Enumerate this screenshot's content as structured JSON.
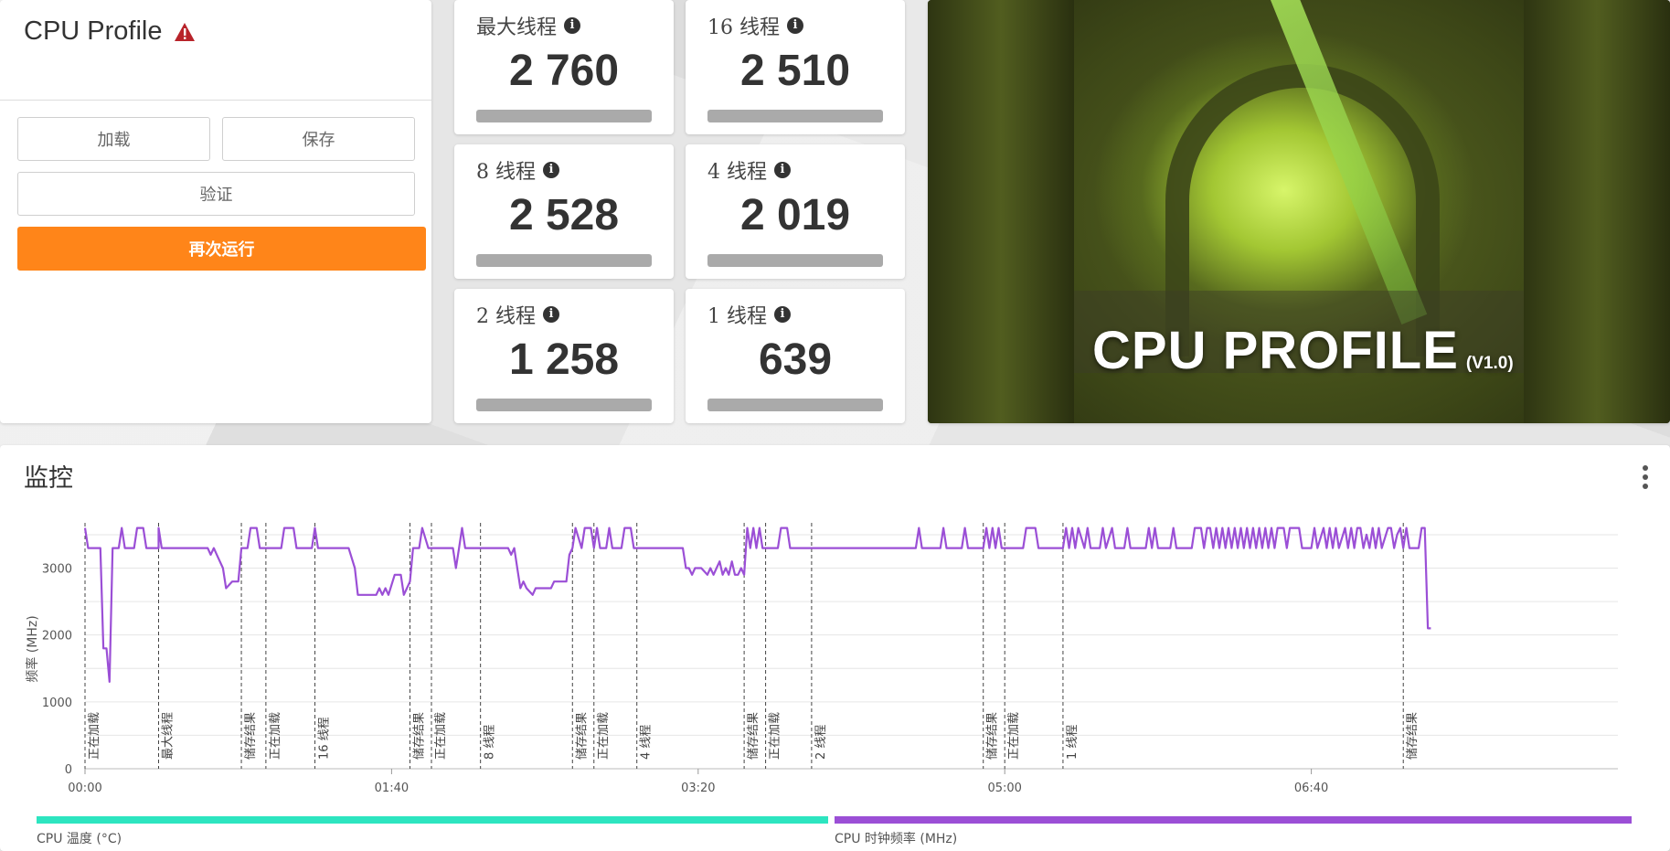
{
  "left_panel": {
    "title": "CPU Profile",
    "load_label": "加载",
    "save_label": "保存",
    "verify_label": "验证",
    "run_again_label": "再次运行"
  },
  "scores": [
    {
      "label": "最大线程",
      "value": "2 760"
    },
    {
      "label": "16 线程",
      "value": "2 510"
    },
    {
      "label": "8 线程",
      "value": "2 528"
    },
    {
      "label": "4 线程",
      "value": "2 019"
    },
    {
      "label": "2 线程",
      "value": "1 258"
    },
    {
      "label": "1 线程",
      "value": "639"
    }
  ],
  "banner": {
    "title": "CPU PROFILE",
    "version": "(V1.0)"
  },
  "monitor": {
    "title": "监控"
  },
  "chart_data": {
    "type": "line",
    "ylabel": "频率 (MHz)",
    "ylim": [
      0,
      3800
    ],
    "yticks": [
      0,
      1000,
      2000,
      3000
    ],
    "xlim_seconds": [
      0,
      490
    ],
    "xtick_labels": [
      "00:00",
      "01:40",
      "03:20",
      "05:00",
      "06:40"
    ],
    "xtick_seconds": [
      0,
      100,
      200,
      300,
      400
    ],
    "line_color": "#9b4fd6",
    "markers": [
      {
        "t": 0,
        "label": "正在加载"
      },
      {
        "t": 24,
        "label": "最大线程"
      },
      {
        "t": 51,
        "label": "储存结果"
      },
      {
        "t": 59,
        "label": "正在加载"
      },
      {
        "t": 75,
        "label": "16 线程"
      },
      {
        "t": 106,
        "label": "储存结果"
      },
      {
        "t": 113,
        "label": "正在加载"
      },
      {
        "t": 129,
        "label": "8 线程"
      },
      {
        "t": 159,
        "label": "储存结果"
      },
      {
        "t": 166,
        "label": "正在加载"
      },
      {
        "t": 180,
        "label": "4 线程"
      },
      {
        "t": 215,
        "label": "储存结果"
      },
      {
        "t": 222,
        "label": "正在加载"
      },
      {
        "t": 237,
        "label": "2 线程"
      },
      {
        "t": 293,
        "label": "储存结果"
      },
      {
        "t": 300,
        "label": "正在加载"
      },
      {
        "t": 319,
        "label": "1 线程"
      },
      {
        "t": 430,
        "label": "储存结果"
      }
    ],
    "series": [
      {
        "name": "CPU 时钟频率 (MHz)",
        "points": [
          [
            0,
            3600
          ],
          [
            1,
            3300
          ],
          [
            5,
            3300
          ],
          [
            6,
            1800
          ],
          [
            7,
            1800
          ],
          [
            8,
            1300
          ],
          [
            9,
            3300
          ],
          [
            11,
            3300
          ],
          [
            12,
            3600
          ],
          [
            13,
            3300
          ],
          [
            16,
            3300
          ],
          [
            17,
            3600
          ],
          [
            19,
            3600
          ],
          [
            20,
            3300
          ],
          [
            24,
            3300
          ],
          [
            24,
            3600
          ],
          [
            25,
            3300
          ],
          [
            40,
            3300
          ],
          [
            41,
            3200
          ],
          [
            42,
            3300
          ],
          [
            43,
            3200
          ],
          [
            45,
            3000
          ],
          [
            46,
            2700
          ],
          [
            48,
            2800
          ],
          [
            50,
            2800
          ],
          [
            51,
            3300
          ],
          [
            53,
            3300
          ],
          [
            54,
            3600
          ],
          [
            56,
            3600
          ],
          [
            57,
            3300
          ],
          [
            59,
            3300
          ],
          [
            64,
            3300
          ],
          [
            65,
            3600
          ],
          [
            68,
            3600
          ],
          [
            69,
            3300
          ],
          [
            74,
            3300
          ],
          [
            75,
            3600
          ],
          [
            76,
            3300
          ],
          [
            86,
            3300
          ],
          [
            88,
            3000
          ],
          [
            89,
            2600
          ],
          [
            95,
            2600
          ],
          [
            96,
            2700
          ],
          [
            97,
            2600
          ],
          [
            98,
            2700
          ],
          [
            99,
            2600
          ],
          [
            101,
            2900
          ],
          [
            103,
            2900
          ],
          [
            104,
            2600
          ],
          [
            106,
            2800
          ],
          [
            107,
            3300
          ],
          [
            109,
            3300
          ],
          [
            110,
            3600
          ],
          [
            112,
            3300
          ],
          [
            113,
            3300
          ],
          [
            120,
            3300
          ],
          [
            121,
            3000
          ],
          [
            122,
            3300
          ],
          [
            123,
            3600
          ],
          [
            124,
            3300
          ],
          [
            129,
            3300
          ],
          [
            130,
            3300
          ],
          [
            138,
            3300
          ],
          [
            139,
            3200
          ],
          [
            140,
            3300
          ],
          [
            141,
            3000
          ],
          [
            142,
            2700
          ],
          [
            143,
            2800
          ],
          [
            144,
            2700
          ],
          [
            146,
            2600
          ],
          [
            147,
            2700
          ],
          [
            152,
            2700
          ],
          [
            153,
            2800
          ],
          [
            157,
            2800
          ],
          [
            158,
            3200
          ],
          [
            159,
            3300
          ],
          [
            160,
            3600
          ],
          [
            162,
            3300
          ],
          [
            163,
            3600
          ],
          [
            165,
            3600
          ],
          [
            166,
            3300
          ],
          [
            167,
            3600
          ],
          [
            168,
            3300
          ],
          [
            170,
            3300
          ],
          [
            171,
            3600
          ],
          [
            172,
            3300
          ],
          [
            175,
            3300
          ],
          [
            176,
            3600
          ],
          [
            178,
            3600
          ],
          [
            179,
            3300
          ],
          [
            180,
            3300
          ],
          [
            195,
            3300
          ],
          [
            196,
            3000
          ],
          [
            197,
            3000
          ],
          [
            198,
            2900
          ],
          [
            199,
            3000
          ],
          [
            201,
            3000
          ],
          [
            203,
            2900
          ],
          [
            204,
            3000
          ],
          [
            205,
            2900
          ],
          [
            206,
            3000
          ],
          [
            207,
            3100
          ],
          [
            208,
            2900
          ],
          [
            209,
            3000
          ],
          [
            210,
            2900
          ],
          [
            211,
            3100
          ],
          [
            212,
            2900
          ],
          [
            213,
            2900
          ],
          [
            214,
            3000
          ],
          [
            215,
            2900
          ],
          [
            216,
            3600
          ],
          [
            217,
            3300
          ],
          [
            218,
            3600
          ],
          [
            219,
            3300
          ],
          [
            220,
            3600
          ],
          [
            221,
            3300
          ],
          [
            222,
            3300
          ],
          [
            226,
            3300
          ],
          [
            227,
            3600
          ],
          [
            229,
            3600
          ],
          [
            230,
            3300
          ],
          [
            237,
            3300
          ],
          [
            238,
            3300
          ],
          [
            271,
            3300
          ],
          [
            272,
            3600
          ],
          [
            273,
            3300
          ],
          [
            279,
            3300
          ],
          [
            280,
            3600
          ],
          [
            281,
            3300
          ],
          [
            286,
            3300
          ],
          [
            287,
            3600
          ],
          [
            288,
            3300
          ],
          [
            293,
            3300
          ],
          [
            294,
            3600
          ],
          [
            295,
            3300
          ],
          [
            296,
            3600
          ],
          [
            297,
            3300
          ],
          [
            298,
            3600
          ],
          [
            299,
            3300
          ],
          [
            300,
            3300
          ],
          [
            306,
            3300
          ],
          [
            307,
            3600
          ],
          [
            310,
            3600
          ],
          [
            311,
            3300
          ],
          [
            319,
            3300
          ],
          [
            320,
            3600
          ],
          [
            321,
            3300
          ],
          [
            322,
            3600
          ],
          [
            323,
            3300
          ],
          [
            324,
            3600
          ],
          [
            326,
            3300
          ],
          [
            327,
            3600
          ],
          [
            328,
            3300
          ],
          [
            331,
            3300
          ],
          [
            332,
            3600
          ],
          [
            333,
            3300
          ],
          [
            335,
            3600
          ],
          [
            336,
            3300
          ],
          [
            339,
            3300
          ],
          [
            340,
            3600
          ],
          [
            341,
            3300
          ],
          [
            346,
            3300
          ],
          [
            347,
            3600
          ],
          [
            348,
            3300
          ],
          [
            349,
            3600
          ],
          [
            350,
            3300
          ],
          [
            354,
            3300
          ],
          [
            355,
            3600
          ],
          [
            356,
            3300
          ],
          [
            361,
            3300
          ],
          [
            362,
            3600
          ],
          [
            364,
            3600
          ],
          [
            365,
            3300
          ],
          [
            366,
            3600
          ],
          [
            367,
            3600
          ],
          [
            368,
            3300
          ],
          [
            369,
            3600
          ],
          [
            370,
            3300
          ],
          [
            371,
            3600
          ],
          [
            372,
            3300
          ],
          [
            373,
            3600
          ],
          [
            374,
            3300
          ],
          [
            375,
            3600
          ],
          [
            376,
            3300
          ],
          [
            377,
            3600
          ],
          [
            378,
            3300
          ],
          [
            379,
            3600
          ],
          [
            380,
            3300
          ],
          [
            381,
            3600
          ],
          [
            382,
            3300
          ],
          [
            383,
            3600
          ],
          [
            384,
            3300
          ],
          [
            385,
            3600
          ],
          [
            386,
            3300
          ],
          [
            387,
            3600
          ],
          [
            388,
            3300
          ],
          [
            389,
            3600
          ],
          [
            391,
            3600
          ],
          [
            392,
            3300
          ],
          [
            393,
            3600
          ],
          [
            396,
            3600
          ],
          [
            397,
            3300
          ],
          [
            400,
            3300
          ],
          [
            401,
            3600
          ],
          [
            402,
            3300
          ],
          [
            404,
            3600
          ],
          [
            405,
            3300
          ],
          [
            406,
            3600
          ],
          [
            407,
            3300
          ],
          [
            408,
            3600
          ],
          [
            409,
            3300
          ],
          [
            411,
            3600
          ],
          [
            412,
            3300
          ],
          [
            413,
            3600
          ],
          [
            414,
            3300
          ],
          [
            415,
            3600
          ],
          [
            416,
            3600
          ],
          [
            417,
            3300
          ],
          [
            418,
            3500
          ],
          [
            419,
            3300
          ],
          [
            420,
            3600
          ],
          [
            421,
            3300
          ],
          [
            422,
            3600
          ],
          [
            423,
            3300
          ],
          [
            425,
            3600
          ],
          [
            426,
            3600
          ],
          [
            427,
            3300
          ],
          [
            428,
            3500
          ],
          [
            429,
            3600
          ],
          [
            430,
            3300
          ],
          [
            431,
            3600
          ],
          [
            432,
            3300
          ],
          [
            435,
            3300
          ],
          [
            436,
            3600
          ],
          [
            437,
            3600
          ],
          [
            438,
            2100
          ],
          [
            439,
            2100
          ]
        ]
      }
    ],
    "legend": [
      {
        "label": "CPU 温度 (°C)",
        "color": "#2de5c0"
      },
      {
        "label": "CPU 时钟频率 (MHz)",
        "color": "#9b4fd6"
      }
    ]
  }
}
